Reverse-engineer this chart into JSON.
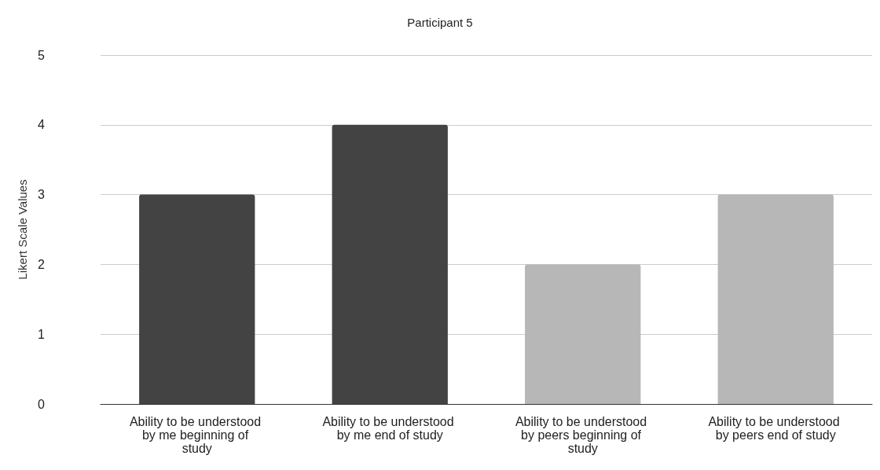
{
  "chart_data": {
    "type": "bar",
    "title": "Participant 5",
    "ylabel": "Likert Scale Values",
    "categories": [
      "Ability to be understood by me beginning of study",
      "Ability to be understood by me end of study",
      "Ability to be understood by peers beginning of study",
      "Ability to be understood by peers end of study"
    ],
    "values": [
      3,
      4,
      2,
      3
    ],
    "colors": [
      "#434343",
      "#434343",
      "#b7b7b7",
      "#b7b7b7"
    ],
    "ylim": [
      0,
      5
    ],
    "yticks": [
      0,
      1,
      2,
      3,
      4,
      5
    ],
    "grid": "y"
  }
}
